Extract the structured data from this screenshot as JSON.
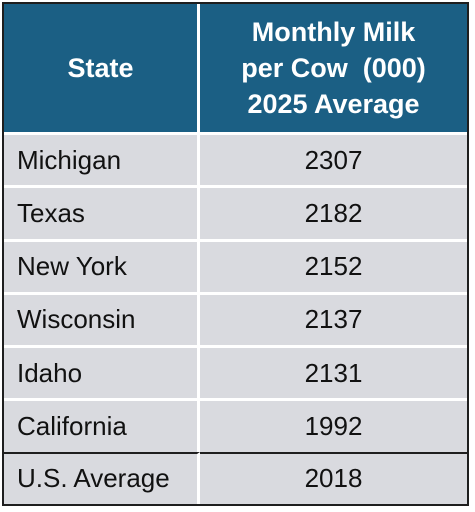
{
  "chart_data": {
    "type": "table",
    "columns": [
      "State",
      "Monthly Milk per Cow  (000) 2025 Average"
    ],
    "header": {
      "col1": "State",
      "col2_lines": [
        "Monthly Milk",
        "per Cow  (000)",
        "2025 Average"
      ]
    },
    "rows": [
      {
        "state": "Michigan",
        "value": "2307"
      },
      {
        "state": "Texas",
        "value": "2182"
      },
      {
        "state": "New York",
        "value": "2152"
      },
      {
        "state": "Wisconsin",
        "value": "2137"
      },
      {
        "state": "Idaho",
        "value": "2131"
      },
      {
        "state": "California",
        "value": "1992"
      }
    ],
    "summary_row": {
      "state": "U.S. Average",
      "value": "2018"
    }
  },
  "colors": {
    "header_bg": "#1b5f84",
    "header_text": "#ffffff",
    "row_bg": "#d9dadf",
    "text": "#111111",
    "frame": "#1e1e1e"
  }
}
